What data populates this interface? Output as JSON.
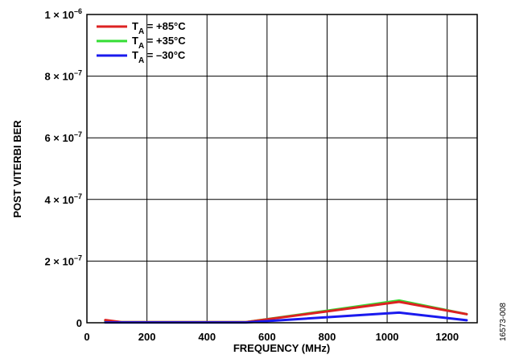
{
  "figure_id": "16573-008",
  "chart_data": {
    "type": "line",
    "xlabel": "FREQUENCY (MHz)",
    "ylabel": "POST VITERBI BER",
    "xlim": [
      0,
      1300
    ],
    "ylim": [
      0,
      1e-06
    ],
    "x_ticks": [
      {
        "value": 0,
        "label": "0"
      },
      {
        "value": 200,
        "label": "200"
      },
      {
        "value": 400,
        "label": "400"
      },
      {
        "value": 600,
        "label": "600"
      },
      {
        "value": 800,
        "label": "800"
      },
      {
        "value": 1000,
        "label": "1000"
      },
      {
        "value": 1200,
        "label": "1200"
      }
    ],
    "y_ticks": [
      {
        "value": 0,
        "mant": "0",
        "exp": ""
      },
      {
        "value": 2e-07,
        "mant": "2 × 10",
        "exp": "–7"
      },
      {
        "value": 4e-07,
        "mant": "4 × 10",
        "exp": "–7"
      },
      {
        "value": 6e-07,
        "mant": "6 × 10",
        "exp": "–7"
      },
      {
        "value": 8e-07,
        "mant": "8 × 10",
        "exp": "–7"
      },
      {
        "value": 1e-06,
        "mant": "1 × 10",
        "exp": "–6"
      }
    ],
    "grid": true,
    "legend_position": "top-left",
    "series": [
      {
        "name": "T_A = +35°C",
        "label_main": "T",
        "label_sub": "A",
        "label_rest": " = +35°C",
        "color": "#33dd33",
        "points": [
          [
            61,
            6e-09
          ],
          [
            115,
            2e-09
          ],
          [
            530,
            2e-09
          ],
          [
            1040,
            7.2e-08
          ],
          [
            1265,
            2.8e-08
          ]
        ]
      },
      {
        "name": "T_A = +85°C",
        "label_main": "T",
        "label_sub": "A",
        "label_rest": " = +85°C",
        "color": "#dd2222",
        "points": [
          [
            61,
            9e-09
          ],
          [
            115,
            2e-09
          ],
          [
            530,
            2e-09
          ],
          [
            1040,
            6.8e-08
          ],
          [
            1265,
            2.8e-08
          ]
        ]
      },
      {
        "name": "T_A = –30°C",
        "label_main": "T",
        "label_sub": "A",
        "label_rest": " = –30°C",
        "color": "#1a1aee",
        "points": [
          [
            61,
            1e-09
          ],
          [
            115,
            1e-09
          ],
          [
            530,
            1e-09
          ],
          [
            1040,
            3.3e-08
          ],
          [
            1265,
            8e-09
          ]
        ]
      }
    ],
    "legend_order": [
      1,
      0,
      2
    ]
  }
}
